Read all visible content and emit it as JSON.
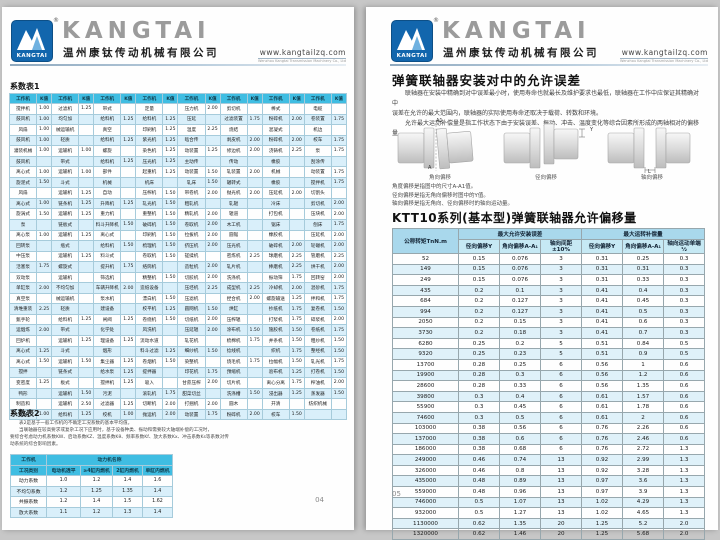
{
  "brand": {
    "logo_label": "KANGTAI",
    "reg": "®",
    "wordmark": "KANGTAI",
    "company_cn": "温州康钛传动机械有限公司",
    "website": "www.kangtailzq.com",
    "website_sub": "Wenzhou Kangtai Transmission Machinery Co., Ltd",
    "colors": {
      "logo_blue": "#1266ad",
      "table_header_cyan": "#3fbde2",
      "row_tint": "#d9effa",
      "ktt_header": "#a9d8ec"
    }
  },
  "left_page": {
    "page_number": "04",
    "table1": {
      "title": "系数表1",
      "col_pair": [
        "工作机",
        "K值"
      ],
      "pair_count": 8,
      "rows": [
        [
          "搅拌机",
          "1.00",
          "过滤机",
          "1.25",
          "带式",
          "",
          "定量",
          "",
          "压力机",
          "2.00",
          "剪切机",
          "",
          "棒式",
          "",
          "电缆",
          ""
        ],
        [
          "鼓风机",
          "1.00",
          "均匀加",
          "",
          "给料机",
          "1.25",
          "给料机",
          "1.25",
          "压延",
          "",
          "过滤装置",
          "1.75",
          "粉碎机",
          "2.00",
          "卷装置",
          "1.75"
        ],
        [
          "风扇",
          "1.00",
          "械运输机",
          "",
          "真空",
          "",
          "印刷机",
          "1.25",
          "温度",
          "2.25",
          "烧结",
          "",
          "混凝式",
          "",
          "机边",
          ""
        ],
        [
          "鼓风机",
          "1.00",
          "轻质",
          "",
          "给料机",
          "1.25",
          "紫光机",
          "1.25",
          "啮合传",
          "",
          "剥皮机",
          "2.00",
          "粉碎机",
          "2.00",
          "校车",
          "1.75"
        ],
        [
          "灌装机械",
          "1.00",
          "运输机",
          "1.00",
          "螺旋",
          "",
          "染色机",
          "1.25",
          "动装置",
          "1.25",
          "修边机",
          "2.00",
          "浇铸机",
          "2.25",
          "泵",
          "1.75"
        ],
        [
          "鼓风机",
          "",
          "带式",
          "",
          "给料机",
          "1.25",
          "压光机",
          "1.25",
          "主动传",
          "",
          "传动",
          "",
          "橡胶",
          "",
          "刮涂传",
          ""
        ],
        [
          "离心式",
          "1.00",
          "运输机",
          "1.00",
          "部件",
          "",
          "起重机",
          "1.25",
          "动装置",
          "1.50",
          "轧装置",
          "2.00",
          "机械",
          "",
          "动装置",
          "1.75"
        ],
        [
          "旋泥式",
          "1.50",
          "斗式",
          "",
          "机械",
          "",
          "机床",
          "",
          "轧床",
          "1.50",
          "辗转式",
          "",
          "橡胶",
          "",
          "搅拌机",
          "1.75"
        ],
        [
          "风扇",
          "",
          "运输机",
          "1.25",
          "自动",
          "",
          "压榨机",
          "1.50",
          "带卷机",
          "2.00",
          "抛光机",
          "2.00",
          "压延机",
          "2.00",
          "切割头",
          ""
        ],
        [
          "离心式",
          "1.00",
          "链条机",
          "1.25",
          "升降机",
          "1.25",
          "轧光机",
          "1.50",
          "粗轧机",
          "",
          "轧辊",
          "",
          "冷床",
          "",
          "剪切机",
          "2.00"
        ],
        [
          "旋涡式",
          "1.50",
          "运输机",
          "1.25",
          "重力机",
          "",
          "重整机",
          "1.50",
          "精轧机",
          "2.00",
          "辊道",
          "",
          "打包机",
          "",
          "压块机",
          "2.00"
        ],
        [
          "泵",
          "",
          "链板式",
          "",
          "料斗升降机",
          "1.50",
          "破碎机",
          "1.50",
          "卷取机",
          "2.00",
          "木工机",
          "",
          "锯床",
          "",
          "刨床",
          "1.75"
        ],
        [
          "离心泵",
          "1.00",
          "运输机",
          "1.25",
          "离心式",
          "",
          "印刷机",
          "1.50",
          "拉拔机",
          "2.00",
          "圆锯",
          "",
          "橡胶机",
          "",
          "压延机",
          "2.00"
        ],
        [
          "回转泵",
          "",
          "瓶式",
          "",
          "给料机",
          "1.50",
          "梳理机",
          "1.50",
          "挤压机",
          "2.00",
          "压光机",
          "",
          "破碎机",
          "2.00",
          "轮碾机",
          "2.00"
        ],
        [
          "中压泵",
          "",
          "运输机",
          "1.25",
          "料斗式",
          "",
          "卷取机",
          "1.50",
          "搓揉机",
          "",
          "密炼机",
          "2.25",
          "球磨机",
          "2.25",
          "管磨机",
          "2.25"
        ],
        [
          "活塞泵",
          "1.75",
          "螺旋式",
          "",
          "提升机",
          "1.75",
          "络筒机",
          "",
          "造粒机",
          "2.00",
          "轧片机",
          "",
          "棒磨机",
          "2.25",
          "烘干机",
          "2.00"
        ],
        [
          "双动泵",
          "",
          "运输机",
          "",
          "筛选机",
          "",
          "精整机",
          "1.50",
          "切胶机",
          "2.00",
          "洗涤机",
          "",
          "振动筛",
          "1.75",
          "回转窑",
          "2.00"
        ],
        [
          "单缸泵",
          "2.00",
          "不均匀加",
          "",
          "车辆升降机",
          "2.00",
          "造纸设备",
          "",
          "压坯机",
          "2.25",
          "成型机",
          "2.25",
          "冷却机",
          "2.00",
          "混砂机",
          "1.75"
        ],
        [
          "真空泵",
          "",
          "械运输机",
          "",
          "泵水机",
          "",
          "漂白机",
          "1.50",
          "压滤机",
          "",
          "捏合机",
          "2.00",
          "螺旋输送",
          "1.25",
          "拌和机",
          "1.75"
        ],
        [
          "清堆重装",
          "2.25",
          "轻质",
          "",
          "建设备",
          "",
          "校平机",
          "1.25",
          "圆网机",
          "1.50",
          "烘缸",
          "",
          "抄纸机",
          "1.75",
          "复卷机",
          "1.50"
        ],
        [
          "甄手轮",
          "",
          "给料机",
          "1.25",
          "闸阀",
          "1.25",
          "卷绕机",
          "1.50",
          "切纸机",
          "2.00",
          "压榨辊",
          "",
          "打浆机",
          "1.75",
          "碎浆机",
          "2.00"
        ],
        [
          "运烟炼",
          "2.00",
          "带式",
          "",
          "化学处",
          "",
          "风洗机",
          "",
          "压延辊",
          "2.00",
          "涂布机",
          "1.50",
          "施胶机",
          "1.50",
          "卷纸机",
          "1.75"
        ],
        [
          "回炉机",
          "",
          "运输机",
          "1.25",
          "理设备",
          "1.25",
          "流动水道",
          "",
          "轧花机",
          "",
          "梳棉机",
          "1.75",
          "并条机",
          "1.50",
          "粗纱机",
          "1.50"
        ],
        [
          "离心式",
          "1.25",
          "斗式",
          "",
          "烟形",
          "",
          "料斗过滤",
          "1.25",
          "细纱机",
          "1.50",
          "捻线机",
          "",
          "织机",
          "1.75",
          "整经机",
          "1.50"
        ],
        [
          "离心式",
          "1.50",
          "运输机",
          "1.50",
          "集尘器",
          "1.25",
          "卷烟机",
          "1.50",
          "染整机",
          "",
          "烧毛机",
          "1.75",
          "拉幅机",
          "1.50",
          "轧光机",
          "1.75"
        ],
        [
          "搅拌",
          "",
          "链条式",
          "",
          "给水泵",
          "1.25",
          "提拌器",
          "",
          "印花机",
          "1.75",
          "预缩机",
          "",
          "验布机",
          "1.25",
          "打卷机",
          "1.50"
        ],
        [
          "变密度",
          "1.25",
          "板式",
          "",
          "搅拌机",
          "1.25",
          "吸入",
          "",
          "甘蔗压榨",
          "2.00",
          "切片机",
          "",
          "离心分离",
          "1.75",
          "榨油机",
          "2.00"
        ],
        [
          "鸭形",
          "",
          "运输机",
          "1.50",
          "污泥",
          "",
          "滚轧机",
          "1.75",
          "甜菜切丝",
          "",
          "洗涤槽",
          "1.50",
          "浸出器",
          "1.25",
          "蒸发器",
          "1.50"
        ],
        [
          "制造和",
          "",
          "运输机",
          "2.50",
          "过滤器",
          "1.25",
          "切断机",
          "2.00",
          "打捆机",
          "2.00",
          "圆木",
          "",
          "开清",
          "",
          "纺织机械",
          ""
        ],
        [
          "机械",
          "1.00",
          "给料机",
          "1.25",
          "绞机",
          "1.00",
          "抛运机",
          "2.00",
          "动装置",
          "1.75",
          "粉碎机",
          "2.00",
          "校车",
          "1.50",
          "",
          ""
        ]
      ]
    },
    "table2": {
      "title": "系数表2",
      "notes": [
        "表2是基于一般工作机的不确定工况系数的基本平均值。",
        "当联轴器在较高要求或复杂工况下应用时，基于设备种类、振动和需要较大轴端补偿的工况时，",
        "要综合考虑动力机系数KW、启动系数KZ、温度系数Kθ、频率系数Kf、放大系数Kx、冲击系数Ks等系数对传",
        "动系统的综合影响因素。"
      ],
      "header_col": "工作机",
      "header_group": "动力机名称",
      "sub_headers": [
        "工况类别",
        "电动机透平",
        "≥4缸内燃机",
        "2缸内燃机",
        "单缸内燃机"
      ],
      "rows": [
        [
          "动力系数",
          "1.0",
          "1.2",
          "1.4",
          "1.6"
        ],
        [
          "不均匀系数",
          "1.2",
          "1.25",
          "1.35",
          "1.4"
        ],
        [
          "共振系数",
          "1.2",
          "1.4",
          "1.5",
          "1.62"
        ],
        [
          "放大系数",
          "1.1",
          "1.2",
          "1.3",
          "1.4"
        ]
      ]
    }
  },
  "right_page": {
    "page_number": "05",
    "section1": {
      "title": "弹簧联轴器安装对中的允许误差",
      "paragraphs": [
        "联轴器在安装中精确到对中误差最小时，使用寿命也就最长及维护要求也最低，联轴器在工作中应保证其精确对中",
        "误差在允许的最大范围内，联轴器的实际使用寿命还取决于载荷、转数和环境。",
        "允许最大运动补偿量是指工作状态下由于安装误差、振动、冲击、温度变化等综合因素所形成的两轴相对的偏移量。"
      ],
      "diagrams": [
        {
          "label": "角向偏移",
          "dim_top": "A1",
          "dim_bottom": "A"
        },
        {
          "label": "径向偏移",
          "dim_top": "Y",
          "dim_bottom": ""
        },
        {
          "label": "轴向偏移",
          "dim_top": "",
          "dim_bottom": "L"
        }
      ],
      "notes": [
        "角度偏移是指图中的尺寸A-A1值。",
        "径向偏移是指无角向偏移时图中的Y值。",
        "轴向偏移是指无角向、径向偏移时的轴向运动量。"
      ]
    },
    "section2": {
      "title": "KTT10系列(基本型)弹簧联轴器允许偏移量",
      "table": {
        "col0": "公称转矩TnN.m",
        "group1": "最大允许安装误差",
        "group2": "最大运转补偿量",
        "sub1": [
          "径向偏移Y",
          "角向偏移A-A₁",
          "轴向间距±10%"
        ],
        "sub2": [
          "径向偏移Y",
          "角向偏移A-A₁",
          "轴向运动单端 ½"
        ],
        "rows": [
          [
            "52",
            "0.15",
            "0.076",
            "3",
            "0.31",
            "0.25",
            "0.3"
          ],
          [
            "149",
            "0.15",
            "0.076",
            "3",
            "0.31",
            "0.31",
            "0.3"
          ],
          [
            "249",
            "0.15",
            "0.076",
            "3",
            "0.31",
            "0.33",
            "0.3"
          ],
          [
            "435",
            "0.2",
            "0.1",
            "3",
            "0.41",
            "0.4",
            "0.3"
          ],
          [
            "684",
            "0.2",
            "0.127",
            "3",
            "0.41",
            "0.45",
            "0.3"
          ],
          [
            "994",
            "0.2",
            "0.127",
            "3",
            "0.41",
            "0.5",
            "0.3"
          ],
          [
            "2050",
            "0.2",
            "0.15",
            "3",
            "0.41",
            "0.6",
            "0.3"
          ],
          [
            "3730",
            "0.2",
            "0.18",
            "3",
            "0.41",
            "0.7",
            "0.3"
          ],
          [
            "6280",
            "0.25",
            "0.2",
            "5",
            "0.51",
            "0.84",
            "0.5"
          ],
          [
            "9320",
            "0.25",
            "0.23",
            "5",
            "0.51",
            "0.9",
            "0.5"
          ],
          [
            "13700",
            "0.28",
            "0.25",
            "6",
            "0.56",
            "1",
            "0.6"
          ],
          [
            "19900",
            "0.28",
            "0.3",
            "6",
            "0.56",
            "1.2",
            "0.6"
          ],
          [
            "28600",
            "0.28",
            "0.33",
            "6",
            "0.56",
            "1.35",
            "0.6"
          ],
          [
            "39800",
            "0.3",
            "0.4",
            "6",
            "0.61",
            "1.57",
            "0.6"
          ],
          [
            "55900",
            "0.3",
            "0.45",
            "6",
            "0.61",
            "1.78",
            "0.6"
          ],
          [
            "74600",
            "0.3",
            "0.5",
            "6",
            "0.61",
            "2",
            "0.6"
          ],
          [
            "103000",
            "0.38",
            "0.56",
            "6",
            "0.76",
            "2.26",
            "0.6"
          ],
          [
            "137000",
            "0.38",
            "0.6",
            "6",
            "0.76",
            "2.46",
            "0.6"
          ],
          [
            "186000",
            "0.38",
            "0.68",
            "6",
            "0.76",
            "2.72",
            "1.3"
          ],
          [
            "249000",
            "0.46",
            "0.74",
            "13",
            "0.92",
            "2.99",
            "1.3"
          ],
          [
            "326000",
            "0.46",
            "0.8",
            "13",
            "0.92",
            "3.28",
            "1.3"
          ],
          [
            "435000",
            "0.48",
            "0.89",
            "13",
            "0.97",
            "3.6",
            "1.3"
          ],
          [
            "559000",
            "0.48",
            "0.96",
            "13",
            "0.97",
            "3.9",
            "1.3"
          ],
          [
            "746000",
            "0.5",
            "1.07",
            "13",
            "1.02",
            "4.29",
            "1.3"
          ],
          [
            "932000",
            "0.5",
            "1.27",
            "13",
            "1.02",
            "4.65",
            "1.3"
          ],
          [
            "1130000",
            "0.62",
            "1.35",
            "20",
            "1.25",
            "5.2",
            "2.0"
          ],
          [
            "1320000",
            "0.62",
            "1.46",
            "20",
            "1.25",
            "5.68",
            "2.0"
          ]
        ]
      }
    }
  }
}
